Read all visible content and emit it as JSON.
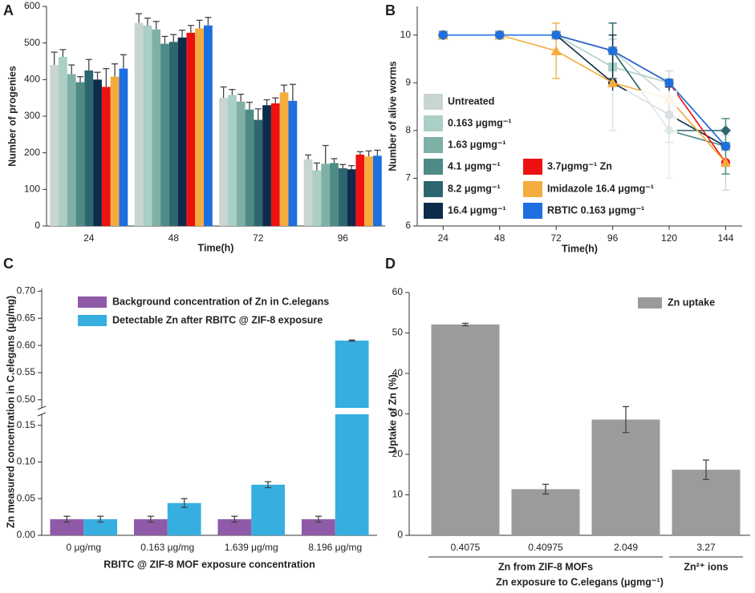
{
  "chart_data": [
    {
      "type": "bar",
      "label": "A",
      "ylabel": "Number of progenies",
      "xlabel": "Time(h)",
      "categories": [
        "24",
        "48",
        "72",
        "96"
      ],
      "ylim": [
        0,
        600
      ],
      "yticks": [
        0,
        100,
        200,
        300,
        400,
        500,
        600
      ],
      "series": [
        {
          "color": "#c8d5d0",
          "values": [
            440,
            555,
            350,
            182
          ],
          "errors": [
            35,
            25,
            30,
            12
          ]
        },
        {
          "color": "#a9cfc6",
          "values": [
            462,
            548,
            358,
            152
          ],
          "errors": [
            20,
            20,
            15,
            20
          ]
        },
        {
          "color": "#7fb0a6",
          "values": [
            415,
            537,
            340,
            170
          ],
          "errors": [
            25,
            22,
            20,
            50
          ]
        },
        {
          "color": "#4e8b86",
          "values": [
            393,
            498,
            318,
            172
          ],
          "errors": [
            15,
            20,
            20,
            12
          ]
        },
        {
          "color": "#2e6670",
          "values": [
            425,
            503,
            290,
            158
          ],
          "errors": [
            30,
            20,
            30,
            10
          ]
        },
        {
          "color": "#0d2b4a",
          "values": [
            400,
            515,
            330,
            155
          ],
          "errors": [
            20,
            20,
            15,
            10
          ]
        },
        {
          "color": "#ee1111",
          "values": [
            380,
            528,
            335,
            195
          ],
          "errors": [
            50,
            20,
            15,
            8
          ]
        },
        {
          "color": "#f5ac3f",
          "values": [
            408,
            540,
            365,
            190
          ],
          "errors": [
            35,
            22,
            20,
            15
          ]
        },
        {
          "color": "#1e6fe0",
          "values": [
            430,
            548,
            342,
            192
          ],
          "errors": [
            38,
            22,
            45,
            15
          ]
        }
      ]
    },
    {
      "type": "line",
      "label": "B",
      "ylabel": "Number of alive worms",
      "xlabel": "Time(h)",
      "x": [
        24,
        48,
        72,
        96,
        120,
        144
      ],
      "xlim": [
        13,
        151
      ],
      "xticks": [
        24,
        48,
        72,
        96,
        120,
        144
      ],
      "ylim": [
        6,
        10.6
      ],
      "yticks": [
        6,
        7,
        8,
        9,
        10
      ],
      "legend": "lower left",
      "series": [
        {
          "name": "Untreated",
          "color": "#c8d5d0",
          "marker": "circle",
          "values": [
            10,
            10,
            10,
            9.67,
            8.67,
            7.33
          ],
          "errors": [
            0,
            0,
            0,
            0.58,
            0.58,
            0.58
          ]
        },
        {
          "name": "0.163 μgmg⁻¹",
          "color": "#a9cfc6",
          "marker": "square",
          "values": [
            10,
            10,
            10,
            9.33,
            9,
            7.67
          ],
          "errors": [
            0,
            0,
            0,
            0.58,
            0,
            0.58
          ]
        },
        {
          "name": "1.63 μgmg⁻¹",
          "color": "#7fb0a6",
          "marker": "square",
          "values": [
            10,
            10,
            10,
            9.67,
            9,
            7.67
          ],
          "errors": [
            0,
            0,
            0,
            0.58,
            0,
            0.58
          ]
        },
        {
          "name": "4.1 μgmg⁻¹",
          "color": "#4e8b86",
          "marker": "diamond",
          "values": [
            10,
            10,
            10,
            9.67,
            8,
            7.67
          ],
          "errors": [
            0,
            0,
            0,
            0.58,
            1,
            0.58
          ]
        },
        {
          "name": "8.2 μgmg⁻¹",
          "color": "#2e6670",
          "marker": "diamond",
          "values": [
            10,
            10,
            10,
            9.67,
            8,
            8
          ],
          "errors": [
            0,
            0,
            0,
            0.58,
            0,
            0
          ]
        },
        {
          "name": "16.4 μgmg⁻¹",
          "color": "#0d2b4a",
          "marker": "circle",
          "values": [
            10,
            10,
            10,
            9,
            8.33,
            7.67
          ],
          "errors": [
            0,
            0,
            0,
            1,
            0.58,
            0
          ]
        },
        {
          "name": "3.7μgmg⁻¹ Zn",
          "color": "#ee1111",
          "marker": "circle",
          "values": [
            10,
            10,
            10,
            9.67,
            9,
            7.33
          ],
          "errors": [
            0,
            0,
            0,
            0,
            0,
            0
          ]
        },
        {
          "name": "Imidazole 16.4 μgmg⁻¹",
          "color": "#f5ac3f",
          "marker": "triangle",
          "values": [
            10,
            10,
            9.67,
            9,
            8.67,
            7.33
          ],
          "errors": [
            0,
            0,
            0.58,
            0,
            0,
            0
          ]
        },
        {
          "name": "RBTIC 0.163 μgmg⁻¹",
          "color": "#1e6fe0",
          "marker": "circle",
          "values": [
            10,
            10,
            10,
            9.67,
            9,
            7.67
          ],
          "errors": [
            0,
            0,
            0,
            0,
            0,
            0
          ]
        }
      ]
    },
    {
      "type": "bar",
      "label": "C",
      "ylabel": "Zn measured concentration in C.elegans (μg/mg)",
      "xlabel": "RBITC @ ZIF-8 MOF exposure concentration",
      "categories": [
        "0 μg/mg",
        "0.163 μg/mg",
        "1.639 μg/mg",
        "8.196 μg/mg"
      ],
      "ylim": [
        0,
        0.705
      ],
      "ybreak": [
        0.165,
        0.485
      ],
      "yticks": [
        {
          "value": 0,
          "label": "0.00"
        },
        0.05,
        {
          "value": 0.1,
          "label": "0.10"
        },
        0.15,
        {
          "value": 0.5,
          "label": "0.50"
        },
        0.55,
        {
          "value": 0.6,
          "label": "0.60"
        },
        0.65,
        {
          "value": 0.7,
          "label": "0.70"
        }
      ],
      "series": [
        {
          "name": "Background concentration of Zn in C.elegans",
          "color": "#8f5aa8",
          "values": [
            0.022,
            0.022,
            0.022,
            0.022
          ],
          "errors": [
            0.004,
            0.004,
            0.004,
            0.004
          ]
        },
        {
          "name": "Detectable Zn after RBITC @ ZIF-8 exposure",
          "color": "#36aee0",
          "values": [
            0.022,
            0.044,
            0.069,
            0.609
          ],
          "errors": [
            0.004,
            0.006,
            0.004,
            0.001
          ]
        }
      ]
    },
    {
      "type": "bar",
      "label": "D",
      "ylabel": "Uptake of Zn (%)",
      "xlabel": "Zn exposure to C.elegans (μgmg⁻¹)",
      "categories": [
        "0.4075",
        "0.40975",
        "2.049",
        "3.27"
      ],
      "x_groups": [
        "Zn from ZIF-8 MOFs",
        "Zn²⁺ ions"
      ],
      "ylim": [
        0,
        60
      ],
      "yticks": [
        0,
        10,
        20,
        30,
        40,
        50,
        60
      ],
      "series": [
        {
          "name": "Zn uptake",
          "color": "#9b9b9b",
          "values": [
            52.1,
            11.4,
            28.6,
            16.2
          ],
          "errors": [
            0.3,
            1.2,
            3.2,
            2.4
          ]
        }
      ]
    }
  ]
}
